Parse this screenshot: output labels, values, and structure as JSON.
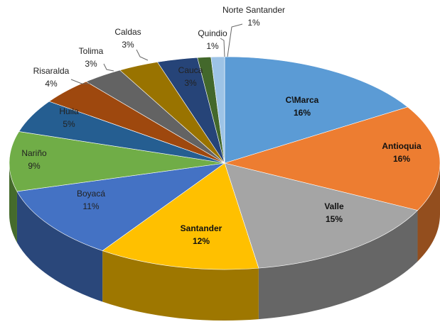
{
  "chart_data": {
    "type": "pie",
    "three_d": true,
    "categories": [
      "C\\Marca",
      "Antioquia",
      "Valle",
      "Santander",
      "Boyacá",
      "Nariño",
      "Huila",
      "Risaralda",
      "Tolima",
      "Caldas",
      "Cauca",
      "Quindio",
      "Norte Santander"
    ],
    "values": [
      16,
      16,
      15,
      12,
      11,
      9,
      5,
      4,
      3,
      3,
      3,
      1,
      1
    ],
    "value_labels": [
      "16%",
      "16%",
      "15%",
      "12%",
      "11%",
      "9%",
      "5%",
      "4%",
      "3%",
      "3%",
      "3%",
      "1%",
      "1%"
    ],
    "colors": [
      "#5b9bd5",
      "#ed7d31",
      "#a5a5a5",
      "#ffc000",
      "#4472c4",
      "#70ad47",
      "#255e91",
      "#9e480e",
      "#636363",
      "#997300",
      "#264478",
      "#43682b",
      "#9dc3e6"
    ]
  }
}
